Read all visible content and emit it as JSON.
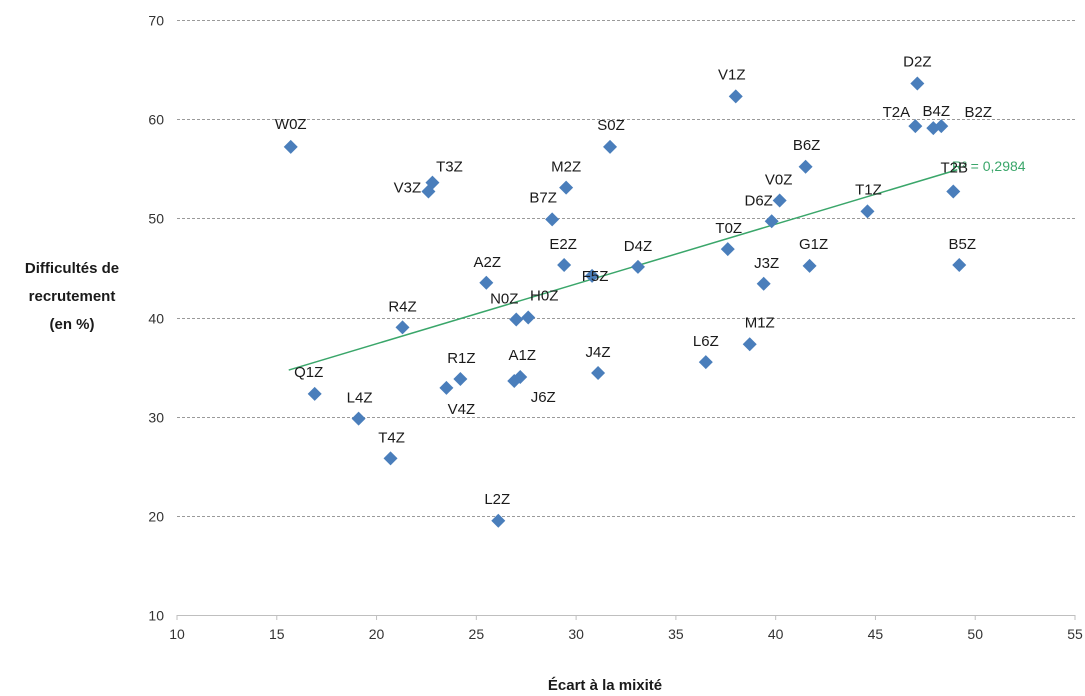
{
  "chart_data": {
    "type": "scatter",
    "xlabel": "Écart à la mixité",
    "ylabel": [
      "Difficultés de",
      "recrutement",
      "(en %)"
    ],
    "xlim": [
      10,
      55
    ],
    "ylim": [
      10,
      70
    ],
    "x_ticks": [
      "10",
      "15",
      "20",
      "25",
      "30",
      "35",
      "40",
      "45",
      "50",
      "55"
    ],
    "y_ticks": [
      "10",
      "20",
      "30",
      "40",
      "50",
      "60",
      "70"
    ],
    "grid": "horizontal dashed",
    "marker": "diamond",
    "colors": {
      "points": "#4a7ebb",
      "trend": "#3aa66a",
      "grid": "#9a9a9a",
      "axis": "#bfbfbf"
    },
    "points": [
      {
        "label": "W0Z",
        "x": 15.7,
        "y": 57.2
      },
      {
        "label": "Q1Z",
        "x": 16.9,
        "y": 32.3
      },
      {
        "label": "L4Z",
        "x": 19.1,
        "y": 29.8
      },
      {
        "label": "T4Z",
        "x": 20.7,
        "y": 25.8
      },
      {
        "label": "R4Z",
        "x": 21.3,
        "y": 39.0
      },
      {
        "label": "V3Z",
        "x": 22.6,
        "y": 52.7
      },
      {
        "label": "T3Z",
        "x": 22.8,
        "y": 53.6
      },
      {
        "label": "R1Z",
        "x": 23.5,
        "y": 32.9
      },
      {
        "label": "V4Z",
        "x": 24.2,
        "y": 33.8
      },
      {
        "label": "A2Z",
        "x": 25.5,
        "y": 43.5
      },
      {
        "label": "A1Z",
        "x": 26.9,
        "y": 33.6
      },
      {
        "label": "N0Z",
        "x": 27.0,
        "y": 39.8
      },
      {
        "label": "J6Z",
        "x": 27.2,
        "y": 34.0
      },
      {
        "label": "H0Z",
        "x": 27.6,
        "y": 40.0
      },
      {
        "label": "L2Z",
        "x": 26.1,
        "y": 19.5
      },
      {
        "label": "B7Z",
        "x": 28.8,
        "y": 49.9
      },
      {
        "label": "E2Z",
        "x": 29.4,
        "y": 45.3
      },
      {
        "label": "M2Z",
        "x": 29.5,
        "y": 53.1
      },
      {
        "label": "F5Z",
        "x": 30.8,
        "y": 44.2
      },
      {
        "label": "J4Z",
        "x": 31.1,
        "y": 34.4
      },
      {
        "label": "S0Z",
        "x": 31.7,
        "y": 57.2
      },
      {
        "label": "D4Z",
        "x": 33.1,
        "y": 45.1
      },
      {
        "label": "L6Z",
        "x": 36.5,
        "y": 35.5
      },
      {
        "label": "T0Z",
        "x": 37.6,
        "y": 46.9
      },
      {
        "label": "V1Z",
        "x": 38.0,
        "y": 62.3
      },
      {
        "label": "M1Z",
        "x": 38.7,
        "y": 37.3
      },
      {
        "label": "J3Z",
        "x": 39.4,
        "y": 43.4
      },
      {
        "label": "D6Z",
        "x": 39.8,
        "y": 49.7
      },
      {
        "label": "V0Z",
        "x": 40.2,
        "y": 51.8
      },
      {
        "label": "B6Z",
        "x": 41.5,
        "y": 55.2
      },
      {
        "label": "G1Z",
        "x": 41.7,
        "y": 45.2
      },
      {
        "label": "T1Z",
        "x": 44.6,
        "y": 50.7
      },
      {
        "label": "T2A",
        "x": 47.0,
        "y": 59.3
      },
      {
        "label": "D2Z",
        "x": 47.1,
        "y": 63.6
      },
      {
        "label": "B4Z",
        "x": 47.9,
        "y": 59.1
      },
      {
        "label": "B2Z",
        "x": 48.3,
        "y": 59.3
      },
      {
        "label": "T2B",
        "x": 48.9,
        "y": 52.7
      },
      {
        "label": "B5Z",
        "x": 49.2,
        "y": 45.3
      }
    ],
    "trendline": {
      "type": "linear",
      "x": [
        15.6,
        49.1
      ],
      "y": [
        34.7,
        54.9
      ],
      "label": "R² = 0,2984"
    }
  }
}
